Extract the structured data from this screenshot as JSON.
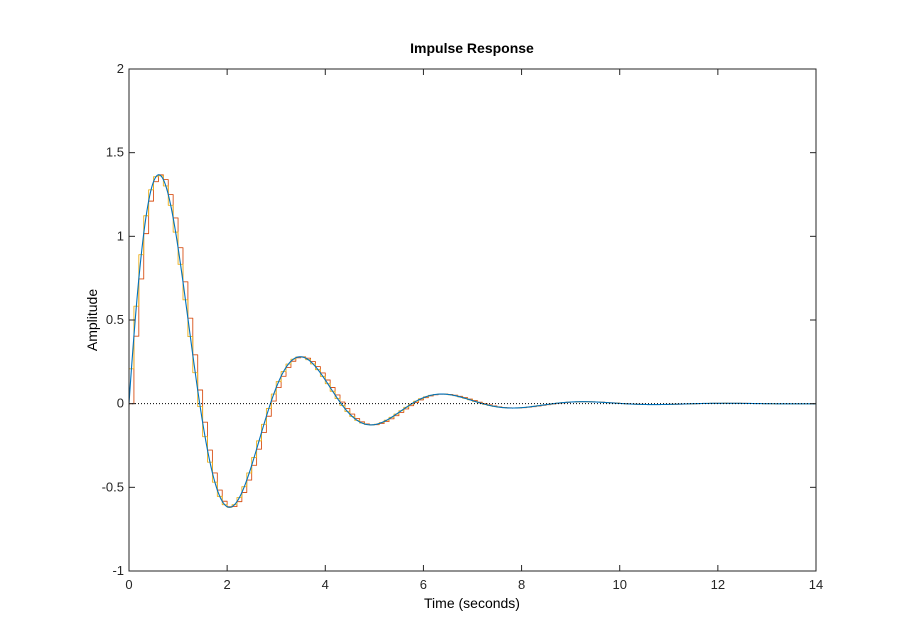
{
  "chart_data": {
    "type": "line",
    "title": "Impulse Response",
    "xlabel": "Time (seconds)",
    "ylabel": "Amplitude",
    "xlim": [
      0,
      14
    ],
    "ylim": [
      -1,
      2
    ],
    "xticks": [
      0,
      2,
      4,
      6,
      8,
      10,
      12,
      14
    ],
    "yticks": [
      -1,
      -0.5,
      0,
      0.5,
      1,
      1.5,
      2
    ],
    "xtick_labels": [
      "0",
      "2",
      "4",
      "6",
      "8",
      "10",
      "12",
      "14"
    ],
    "ytick_labels": [
      "-1",
      "-0.5",
      "0",
      "0.5",
      "1",
      "1.5",
      "2"
    ],
    "grid": false,
    "reference_line": {
      "y": 0,
      "style": "dotted",
      "color": "#000000"
    },
    "system": {
      "form": "damped-sine",
      "amplitude": 1.97,
      "decay": 0.55,
      "omega": 2.18
    },
    "series": [
      {
        "kind": "continuous",
        "color": "#0072BD",
        "t_end": 14
      },
      {
        "kind": "discrete-stairs",
        "color": "#D95319",
        "sample_time": 0.1,
        "t_end": 12.8
      },
      {
        "kind": "discrete-stairs",
        "color": "#EDB120",
        "sample_time": 0.1,
        "offset": 0.05,
        "t_end": 14
      }
    ]
  }
}
